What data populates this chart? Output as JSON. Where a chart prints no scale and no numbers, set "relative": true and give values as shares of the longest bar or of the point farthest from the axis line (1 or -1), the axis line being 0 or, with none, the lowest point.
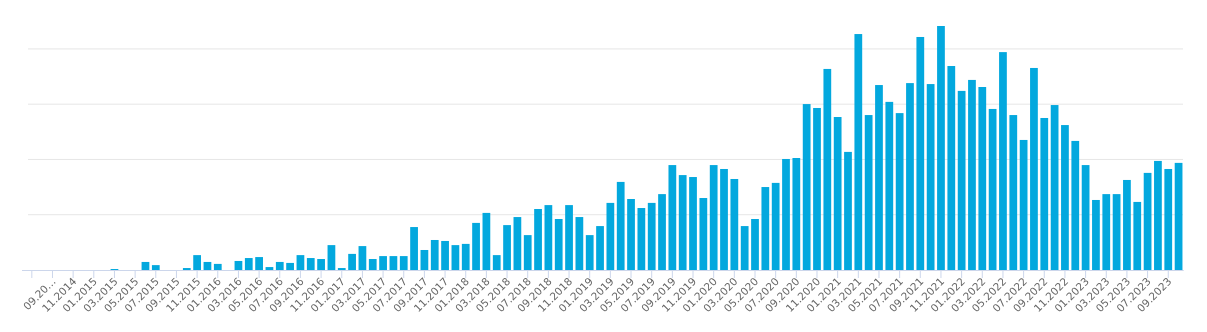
{
  "chart_data": {
    "type": "bar",
    "relative": true,
    "color": "#03a8de",
    "grid": true,
    "categories": [
      null,
      null,
      "09.20…",
      null,
      "11.2014",
      null,
      "01.2015",
      null,
      "03.2015",
      null,
      "05.2015",
      null,
      "07.2015",
      null,
      "09.2015",
      null,
      "11.2015",
      null,
      "01.2016",
      null,
      "03.2016",
      null,
      "05.2016",
      null,
      "07.2016",
      null,
      "09.2016",
      null,
      "11.2016",
      null,
      "01.2017",
      null,
      "03.2017",
      null,
      "05.2017",
      null,
      "07.2017",
      null,
      "09.2017",
      null,
      "11.2017",
      null,
      "01.2018",
      null,
      "03.2018",
      null,
      "05.2018",
      null,
      "07.2018",
      null,
      "09.2018",
      null,
      "11.2018",
      null,
      "01.2019",
      null,
      "03.2019",
      null,
      "05.2019",
      null,
      "07.2019",
      null,
      "09.2019",
      null,
      "11.2019",
      null,
      "01.2020",
      null,
      "03.2020",
      null,
      "05.2020",
      null,
      "07.2020",
      null,
      "09.2020",
      null,
      "11.2020",
      null,
      "01.2021",
      null,
      "03.2021",
      null,
      "05.2021",
      null,
      "07.2021",
      null,
      "09.2021",
      null,
      "11.2021",
      null,
      "01.2022",
      null,
      "03.2022",
      null,
      "05.2022",
      null,
      "07.2022",
      null,
      "09.2022",
      null,
      "11.2022",
      null,
      "01.2023",
      null,
      "03.2023",
      null,
      "05.2023",
      null,
      "07.2023",
      null,
      "09.2023",
      null
    ],
    "values": [
      0,
      0,
      0,
      0,
      0,
      0,
      0,
      0,
      0.004,
      0,
      0,
      0.033,
      0.02,
      0,
      0,
      0.008,
      0.061,
      0.033,
      0.025,
      0,
      0.037,
      0.049,
      0.053,
      0.012,
      0.033,
      0.029,
      0.061,
      0.049,
      0.045,
      0.102,
      0.008,
      0.066,
      0.098,
      0.045,
      0.057,
      0.057,
      0.057,
      0.176,
      0.082,
      0.123,
      0.119,
      0.102,
      0.107,
      0.193,
      0.234,
      0.061,
      0.184,
      0.217,
      0.143,
      0.25,
      0.266,
      0.209,
      0.266,
      0.217,
      0.143,
      0.18,
      0.275,
      0.361,
      0.291,
      0.254,
      0.275,
      0.311,
      0.43,
      0.389,
      0.381,
      0.295,
      0.43,
      0.414,
      0.373,
      0.18,
      0.209,
      0.34,
      0.357,
      0.455,
      0.459,
      0.68,
      0.664,
      0.824,
      0.627,
      0.484,
      0.967,
      0.635,
      0.758,
      0.689,
      0.643,
      0.766,
      0.955,
      0.762,
      1,
      0.836,
      0.734,
      0.779,
      0.75,
      0.66,
      0.893,
      0.635,
      0.533,
      0.828,
      0.623,
      0.676,
      0.594,
      0.529,
      0.43,
      0.287,
      0.311,
      0.311,
      0.369,
      0.279,
      0.398,
      0.447,
      0.414,
      0.439
    ]
  }
}
